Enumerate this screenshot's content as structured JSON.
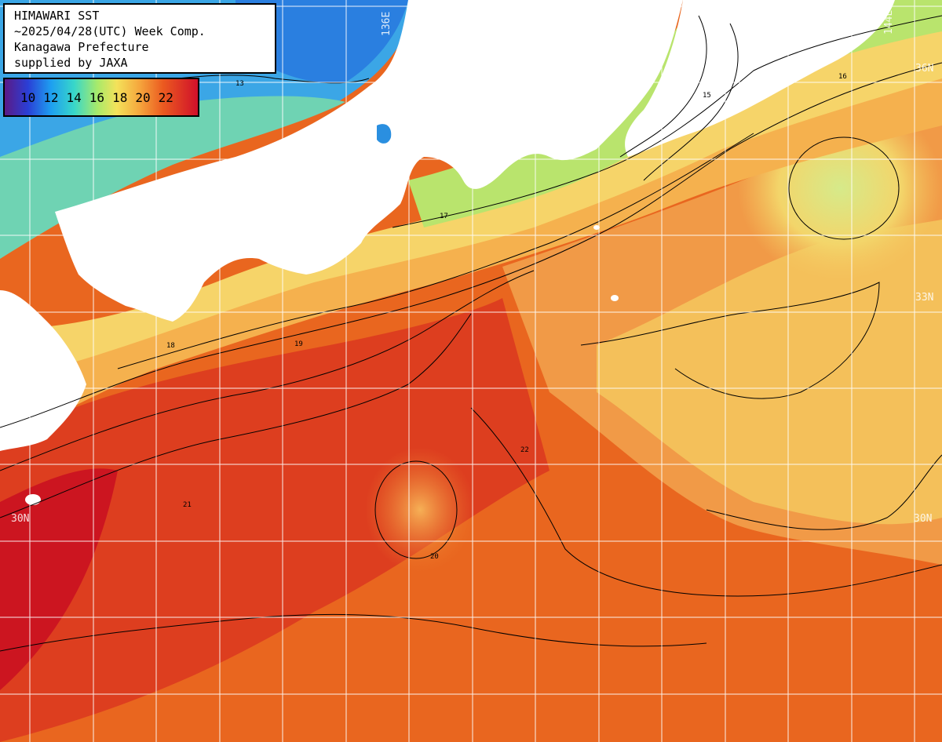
{
  "title_box": {
    "line1": "HIMAWARI SST",
    "line2": "~2025/04/28(UTC) Week Comp.",
    "line3": "Kanagawa Prefecture",
    "line4": "supplied by JAXA"
  },
  "legend": {
    "labels": [
      "10",
      "12",
      "14",
      "16",
      "18",
      "20",
      "22"
    ],
    "colors": [
      "#5b1a86",
      "#2a3fd6",
      "#1e9ff0",
      "#38d7c9",
      "#a8ea6a",
      "#f4e25a",
      "#f5a53c",
      "#eb5a20",
      "#d0102a"
    ]
  },
  "grid_labels": {
    "lon_left": "136E",
    "lon_right": "144E",
    "lat_top": "36N",
    "lat_mid": "33N",
    "lat_left": "30N",
    "lat_right": "30N"
  },
  "isotherm_labels": [
    "13",
    "15",
    "16",
    "17",
    "18",
    "19",
    "20",
    "21",
    "22"
  ],
  "map_colors": {
    "land": "#ffffff",
    "warm_sea": "#e9661f",
    "hot_sea": "#d9231f",
    "mid_sea": "#f39a45",
    "cool_sea": "#f6cf63",
    "cold_sea": "#a9e470",
    "coldest_sea": "#2f9fe6",
    "grid": "#ffffff",
    "contour": "#000000"
  }
}
